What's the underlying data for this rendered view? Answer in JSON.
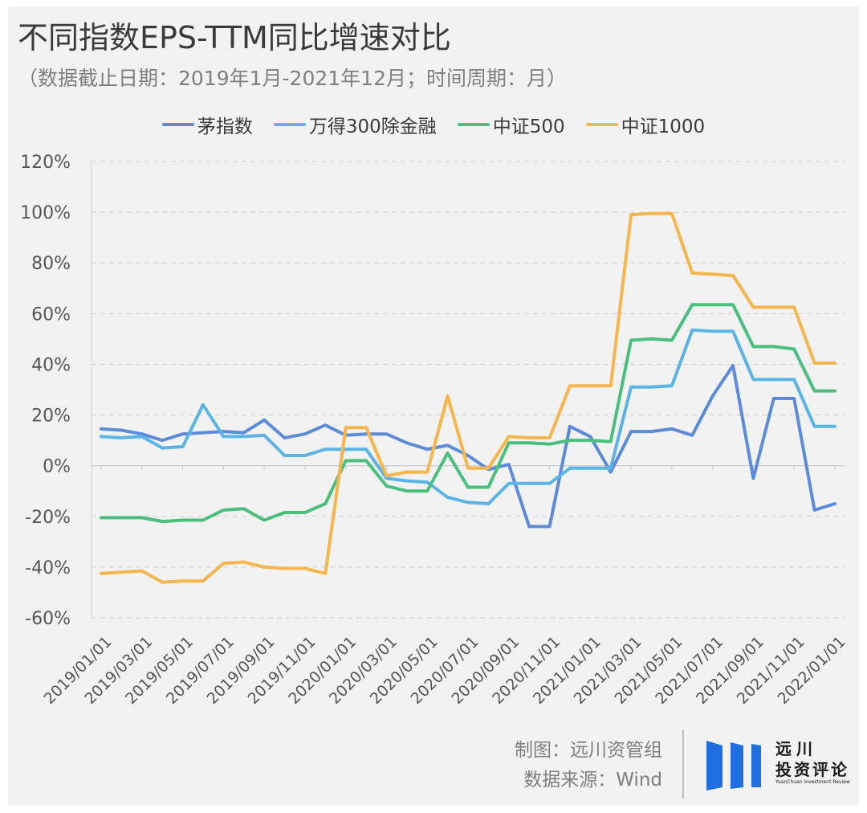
{
  "header": {
    "title": "不同指数EPS-TTM同比增速对比",
    "subtitle": "（数据截止日期：2019年1月-2021年12月；时间周期：月）"
  },
  "footer": {
    "maker": "制图：远川资管组",
    "source": "数据来源：Wind"
  },
  "logo": {
    "line1": "远川",
    "line2": "投资评论",
    "english": "YuanChuan Investment Review",
    "color": "#1f6fe0"
  },
  "chart_data": {
    "type": "line",
    "title": "不同指数EPS-TTM同比增速对比",
    "xlabel": "",
    "ylabel": "",
    "ylim": [
      -60,
      120
    ],
    "y_ticks": [
      -60,
      -40,
      -20,
      0,
      20,
      40,
      60,
      80,
      100,
      120
    ],
    "y_tick_labels": [
      "-60%",
      "-40%",
      "-20%",
      "0%",
      "20%",
      "40%",
      "60%",
      "80%",
      "100%",
      "120%"
    ],
    "x_tick_labels": [
      "2019/01/01",
      "2019/03/01",
      "2019/05/01",
      "2019/07/01",
      "2019/09/01",
      "2019/11/01",
      "2020/01/01",
      "2020/03/01",
      "2020/05/01",
      "2020/07/01",
      "2020/09/01",
      "2020/11/01",
      "2021/01/01",
      "2021/03/01",
      "2021/05/01",
      "2021/07/01",
      "2021/09/01",
      "2021/11/01",
      "2022/01/01"
    ],
    "x": [
      "2019/01",
      "2019/02",
      "2019/03",
      "2019/04",
      "2019/05",
      "2019/06",
      "2019/07",
      "2019/08",
      "2019/09",
      "2019/10",
      "2019/11",
      "2019/12",
      "2020/01",
      "2020/02",
      "2020/03",
      "2020/04",
      "2020/05",
      "2020/06",
      "2020/07",
      "2020/08",
      "2020/09",
      "2020/10",
      "2020/11",
      "2020/12",
      "2021/01",
      "2021/02",
      "2021/03",
      "2021/04",
      "2021/05",
      "2021/06",
      "2021/07",
      "2021/08",
      "2021/09",
      "2021/10",
      "2021/11",
      "2021/12",
      "2022/01"
    ],
    "grid": true,
    "legend_position": "top",
    "series": [
      {
        "name": "茅指数",
        "color": "#5b8bd9",
        "values": [
          14.5,
          14.0,
          12.5,
          10.0,
          12.5,
          13.0,
          13.5,
          13.0,
          18.0,
          11.0,
          12.5,
          16.0,
          12.0,
          12.5,
          12.5,
          9.0,
          6.5,
          8.0,
          4.0,
          -1.5,
          0.5,
          -24.0,
          -24.0,
          15.5,
          11.5,
          -2.5,
          13.5,
          13.5,
          14.5,
          12.0,
          27.5,
          39.5,
          -5.0,
          26.5,
          26.5,
          -17.5,
          -15.0
        ]
      },
      {
        "name": "万得300除金融",
        "color": "#5ab4e5",
        "values": [
          11.5,
          11.0,
          11.5,
          7.0,
          7.5,
          24.0,
          11.5,
          11.5,
          12.0,
          4.0,
          4.0,
          6.5,
          6.5,
          6.5,
          -5.0,
          -6.0,
          -6.5,
          -12.5,
          -14.5,
          -15.0,
          -7.0,
          -7.0,
          -7.0,
          -1.0,
          -1.0,
          -1.0,
          31.0,
          31.0,
          31.5,
          53.5,
          53.0,
          53.0,
          34.0,
          34.0,
          34.0,
          15.5,
          15.5
        ]
      },
      {
        "name": "中证500",
        "color": "#4bbf7d",
        "values": [
          -20.5,
          -20.5,
          -20.5,
          -22.0,
          -21.5,
          -21.5,
          -17.5,
          -17.0,
          -21.5,
          -18.5,
          -18.5,
          -15.0,
          2.0,
          2.0,
          -8.0,
          -10.0,
          -10.0,
          5.0,
          -8.5,
          -8.5,
          9.0,
          9.0,
          8.5,
          10.0,
          10.0,
          9.5,
          49.5,
          50.0,
          49.5,
          63.5,
          63.5,
          63.5,
          47.0,
          47.0,
          46.0,
          29.5,
          29.5
        ]
      },
      {
        "name": "中证1000",
        "color": "#f7b54d",
        "values": [
          -42.5,
          -42.0,
          -41.5,
          -46.0,
          -45.5,
          -45.5,
          -38.5,
          -38.0,
          -40.0,
          -40.5,
          -40.5,
          -42.5,
          15.0,
          15.0,
          -4.0,
          -2.5,
          -2.5,
          27.5,
          -1.0,
          -1.0,
          11.5,
          11.0,
          11.0,
          31.5,
          31.5,
          31.5,
          99.0,
          99.5,
          99.5,
          76.0,
          75.5,
          75.0,
          62.5,
          62.5,
          62.5,
          40.5,
          40.5
        ]
      }
    ]
  }
}
